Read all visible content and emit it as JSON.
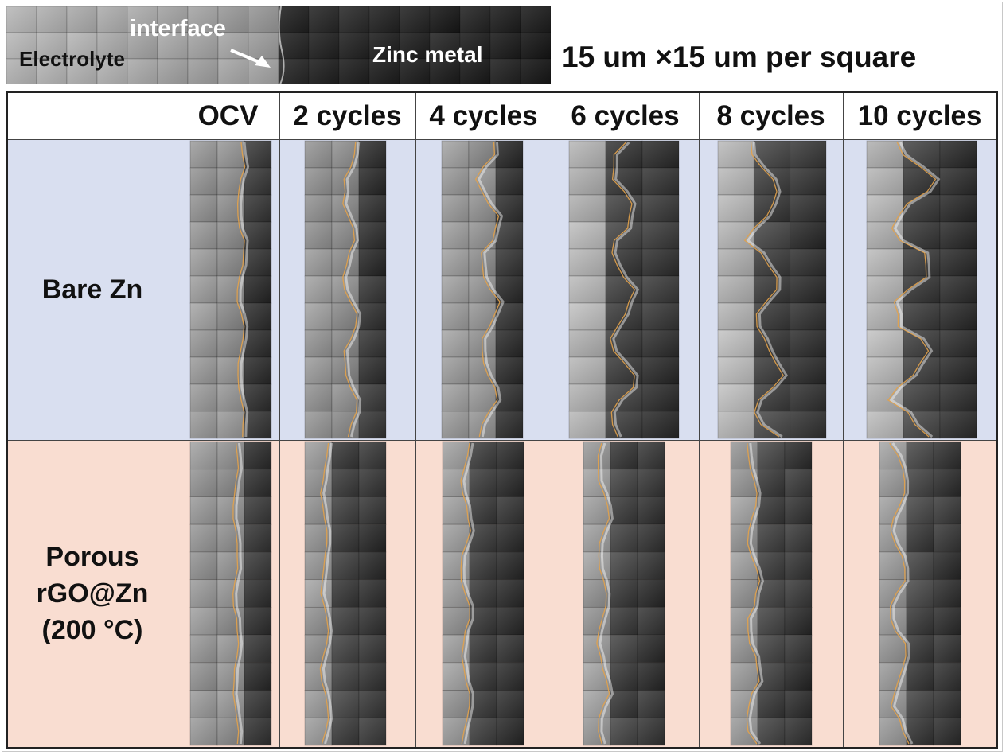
{
  "legend": {
    "electrolyte_label": "Electrolyte",
    "interface_label": "interface",
    "zinc_label": "Zinc metal"
  },
  "scale_note": "15 um ×15 um per square",
  "columns": [
    "OCV",
    "2 cycles",
    "4 cycles",
    "6 cycles",
    "8 cycles",
    "10 cycles"
  ],
  "rows": [
    {
      "label_lines": [
        "Bare Zn"
      ],
      "background": "#d9dff0"
    },
    {
      "label_lines": [
        "Porous",
        "rGO@Zn",
        "(200 °C)"
      ],
      "background": "#f9ddd1"
    }
  ],
  "colors": {
    "interface_trace": "#e3a24a",
    "bare_row_bg": "#d9dff0",
    "rgo_row_bg": "#f9ddd1"
  }
}
